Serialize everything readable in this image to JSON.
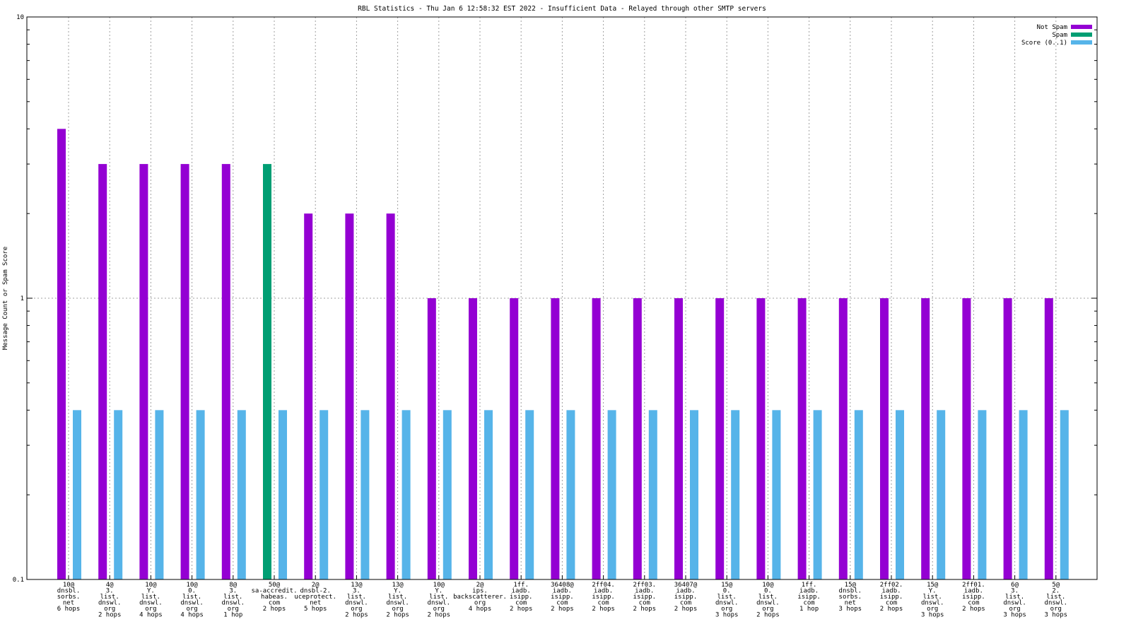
{
  "chart_data": {
    "type": "bar",
    "title": "RBL Statistics - Thu Jan  6 12:58:32 EST 2022 - Insufficient Data - Relayed through other SMTP servers",
    "ylabel": "Message Count or Spam Score",
    "xlabel": "",
    "yscale": "log",
    "ylim": [
      0.1,
      10
    ],
    "yticks": [
      "0.1",
      "1",
      "10"
    ],
    "grid": true,
    "legend_position": "top-right",
    "categories": [
      "10@\ndnsbl.\nsorbs.\nnet\n6 hops",
      "4@\n3.\nlist.\ndnswl.\norg\n2 hops",
      "10@\nY.\nlist.\ndnswl.\norg\n4 hops",
      "10@\n0.\nlist.\ndnswl.\norg\n4 hops",
      "8@\n3.\nlist.\ndnswl.\norg\n1 hop",
      "50@\nsa-accredit.\nhabeas.\ncom\n2 hops",
      "2@\ndnsbl-2.\nuceprotect.\nnet\n5 hops",
      "13@\n3.\nlist.\ndnswl.\norg\n2 hops",
      "13@\nY.\nlist.\ndnswl.\norg\n2 hops",
      "10@\nY.\nlist.\ndnswl.\norg\n2 hops",
      "2@\nips.\nbackscatterer.\norg\n4 hops",
      "1ff.\niadb.\nisipp.\ncom\n2 hops",
      "36408@\niadb.\nisipp.\ncom\n2 hops",
      "2ff04.\niadb.\nisipp.\ncom\n2 hops",
      "2ff03.\niadb.\nisipp.\ncom\n2 hops",
      "36407@\niadb.\nisipp.\ncom\n2 hops",
      "15@\n0.\nlist.\ndnswl.\norg\n3 hops",
      "10@\n0.\nlist.\ndnswl.\norg\n2 hops",
      "1ff.\niadb.\nisipp.\ncom\n1 hop",
      "15@\ndnsbl.\nsorbs.\nnet\n3 hops",
      "2ff02.\niadb.\nisipp.\ncom\n2 hops",
      "15@\nY.\nlist.\ndnswl.\norg\n3 hops",
      "2ff01.\niadb.\nisipp.\ncom\n2 hops",
      "6@\n3.\nlist.\ndnswl.\norg\n3 hops",
      "5@\n2.\nlist.\ndnswl.\norg\n3 hops"
    ],
    "series": [
      {
        "name": "Not Spam",
        "color": "#9400d3",
        "values": [
          4,
          3,
          3,
          3,
          3,
          0,
          2,
          2,
          2,
          1,
          1,
          1,
          1,
          1,
          1,
          1,
          1,
          1,
          1,
          1,
          1,
          1,
          1,
          1,
          1
        ]
      },
      {
        "name": "Spam",
        "color": "#009e73",
        "values": [
          0,
          0,
          0,
          0,
          0,
          3,
          0,
          0,
          0,
          0,
          0,
          0,
          0,
          0,
          0,
          0,
          0,
          0,
          0,
          0,
          0,
          0,
          0,
          0,
          0
        ]
      },
      {
        "name": "Score (0..1)",
        "color": "#56b4e9",
        "values": [
          0.4,
          0.4,
          0.4,
          0.4,
          0.4,
          0.4,
          0.4,
          0.4,
          0.4,
          0.4,
          0.4,
          0.4,
          0.4,
          0.4,
          0.4,
          0.4,
          0.4,
          0.4,
          0.4,
          0.4,
          0.4,
          0.4,
          0.4,
          0.4,
          0.4
        ]
      }
    ]
  }
}
